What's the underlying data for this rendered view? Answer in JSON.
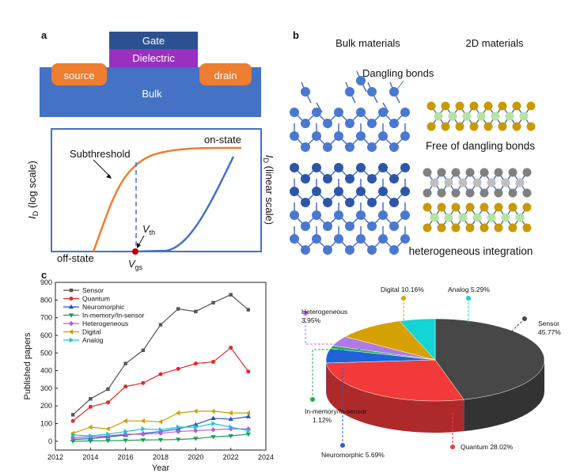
{
  "panel_labels": [
    "a",
    "b",
    "c"
  ],
  "transistor": {
    "gate": "Gate",
    "dielectric": "Dielectric",
    "source": "source",
    "drain": "drain",
    "bulk": "Bulk"
  },
  "iv_plot": {
    "y_label_left": {
      "main": "I",
      "sub": "D",
      "rest": " (log scale)"
    },
    "y_label_right": {
      "main": "I",
      "sub": "D",
      "rest": " (linear scale)"
    },
    "on_state": "on-state",
    "off_state": "off-state",
    "subthreshold": "Subthreshold",
    "vth": {
      "main": "V",
      "sub": "th"
    },
    "vgs": {
      "main": "V",
      "sub": "gs"
    }
  },
  "materials": {
    "bulk_title": "Bulk materials",
    "twod_title": "2D materials",
    "dangling": "Dangling bonds",
    "free": "Free of dangling bonds",
    "hetero": "heterogeneous integration"
  },
  "chart_data": [
    {
      "type": "line",
      "xlabel": "Year",
      "ylabel": "Published papers",
      "x": [
        2013,
        2014,
        2015,
        2016,
        2017,
        2018,
        2019,
        2020,
        2021,
        2022,
        2023
      ],
      "series": [
        {
          "name": "Sensor",
          "color": "#555555",
          "marker": "square",
          "values": [
            150,
            240,
            295,
            440,
            515,
            660,
            750,
            735,
            785,
            830,
            745
          ]
        },
        {
          "name": "Quantum",
          "color": "#e8262b",
          "marker": "circle",
          "values": [
            115,
            195,
            220,
            310,
            330,
            380,
            410,
            440,
            450,
            530,
            395
          ]
        },
        {
          "name": "Neuromorphic",
          "color": "#2453c4",
          "marker": "triangle-up",
          "values": [
            10,
            15,
            25,
            35,
            45,
            55,
            70,
            95,
            130,
            125,
            140
          ]
        },
        {
          "name": "In-memory/In-sensor",
          "color": "#1aa052",
          "marker": "triangle-down",
          "values": [
            0,
            2,
            3,
            5,
            7,
            8,
            10,
            15,
            25,
            30,
            40
          ]
        },
        {
          "name": "Heterogeneous",
          "color": "#b25fe0",
          "marker": "diamond",
          "values": [
            20,
            25,
            30,
            40,
            40,
            45,
            55,
            60,
            65,
            70,
            70
          ]
        },
        {
          "name": "Digital",
          "color": "#c9a000",
          "marker": "triangle-left",
          "values": [
            45,
            80,
            70,
            115,
            115,
            110,
            160,
            170,
            170,
            160,
            160
          ]
        },
        {
          "name": "Analog",
          "color": "#1ac6cf",
          "marker": "triangle-right",
          "values": [
            35,
            30,
            40,
            55,
            70,
            65,
            80,
            80,
            100,
            80,
            60
          ]
        }
      ],
      "xlim": [
        2012,
        2024
      ],
      "xticks": [
        2012,
        2014,
        2016,
        2018,
        2020,
        2022,
        2024
      ],
      "ylim": [
        -50,
        900
      ],
      "yticks": [
        0,
        100,
        200,
        300,
        400,
        500,
        600,
        700,
        800,
        900
      ],
      "legend": "upper left"
    },
    {
      "type": "pie3d",
      "categories": [
        "Sensor",
        "Quantum",
        "Neuromorphic",
        "In-memory/In-sensor",
        "Heterogeneous",
        "Digital",
        "Analog"
      ],
      "values": [
        45.77,
        28.02,
        5.69,
        1.12,
        3.95,
        10.16,
        5.29
      ],
      "value_labels": [
        "45.77%",
        "28.02%",
        "5.69%",
        "1.12%",
        "3.95%",
        "10.16%",
        "5.29%"
      ],
      "colors": [
        "#474747",
        "#f23a3a",
        "#1f63d6",
        "#19b04f",
        "#b07ae6",
        "#d4a100",
        "#14d4d4"
      ]
    }
  ]
}
